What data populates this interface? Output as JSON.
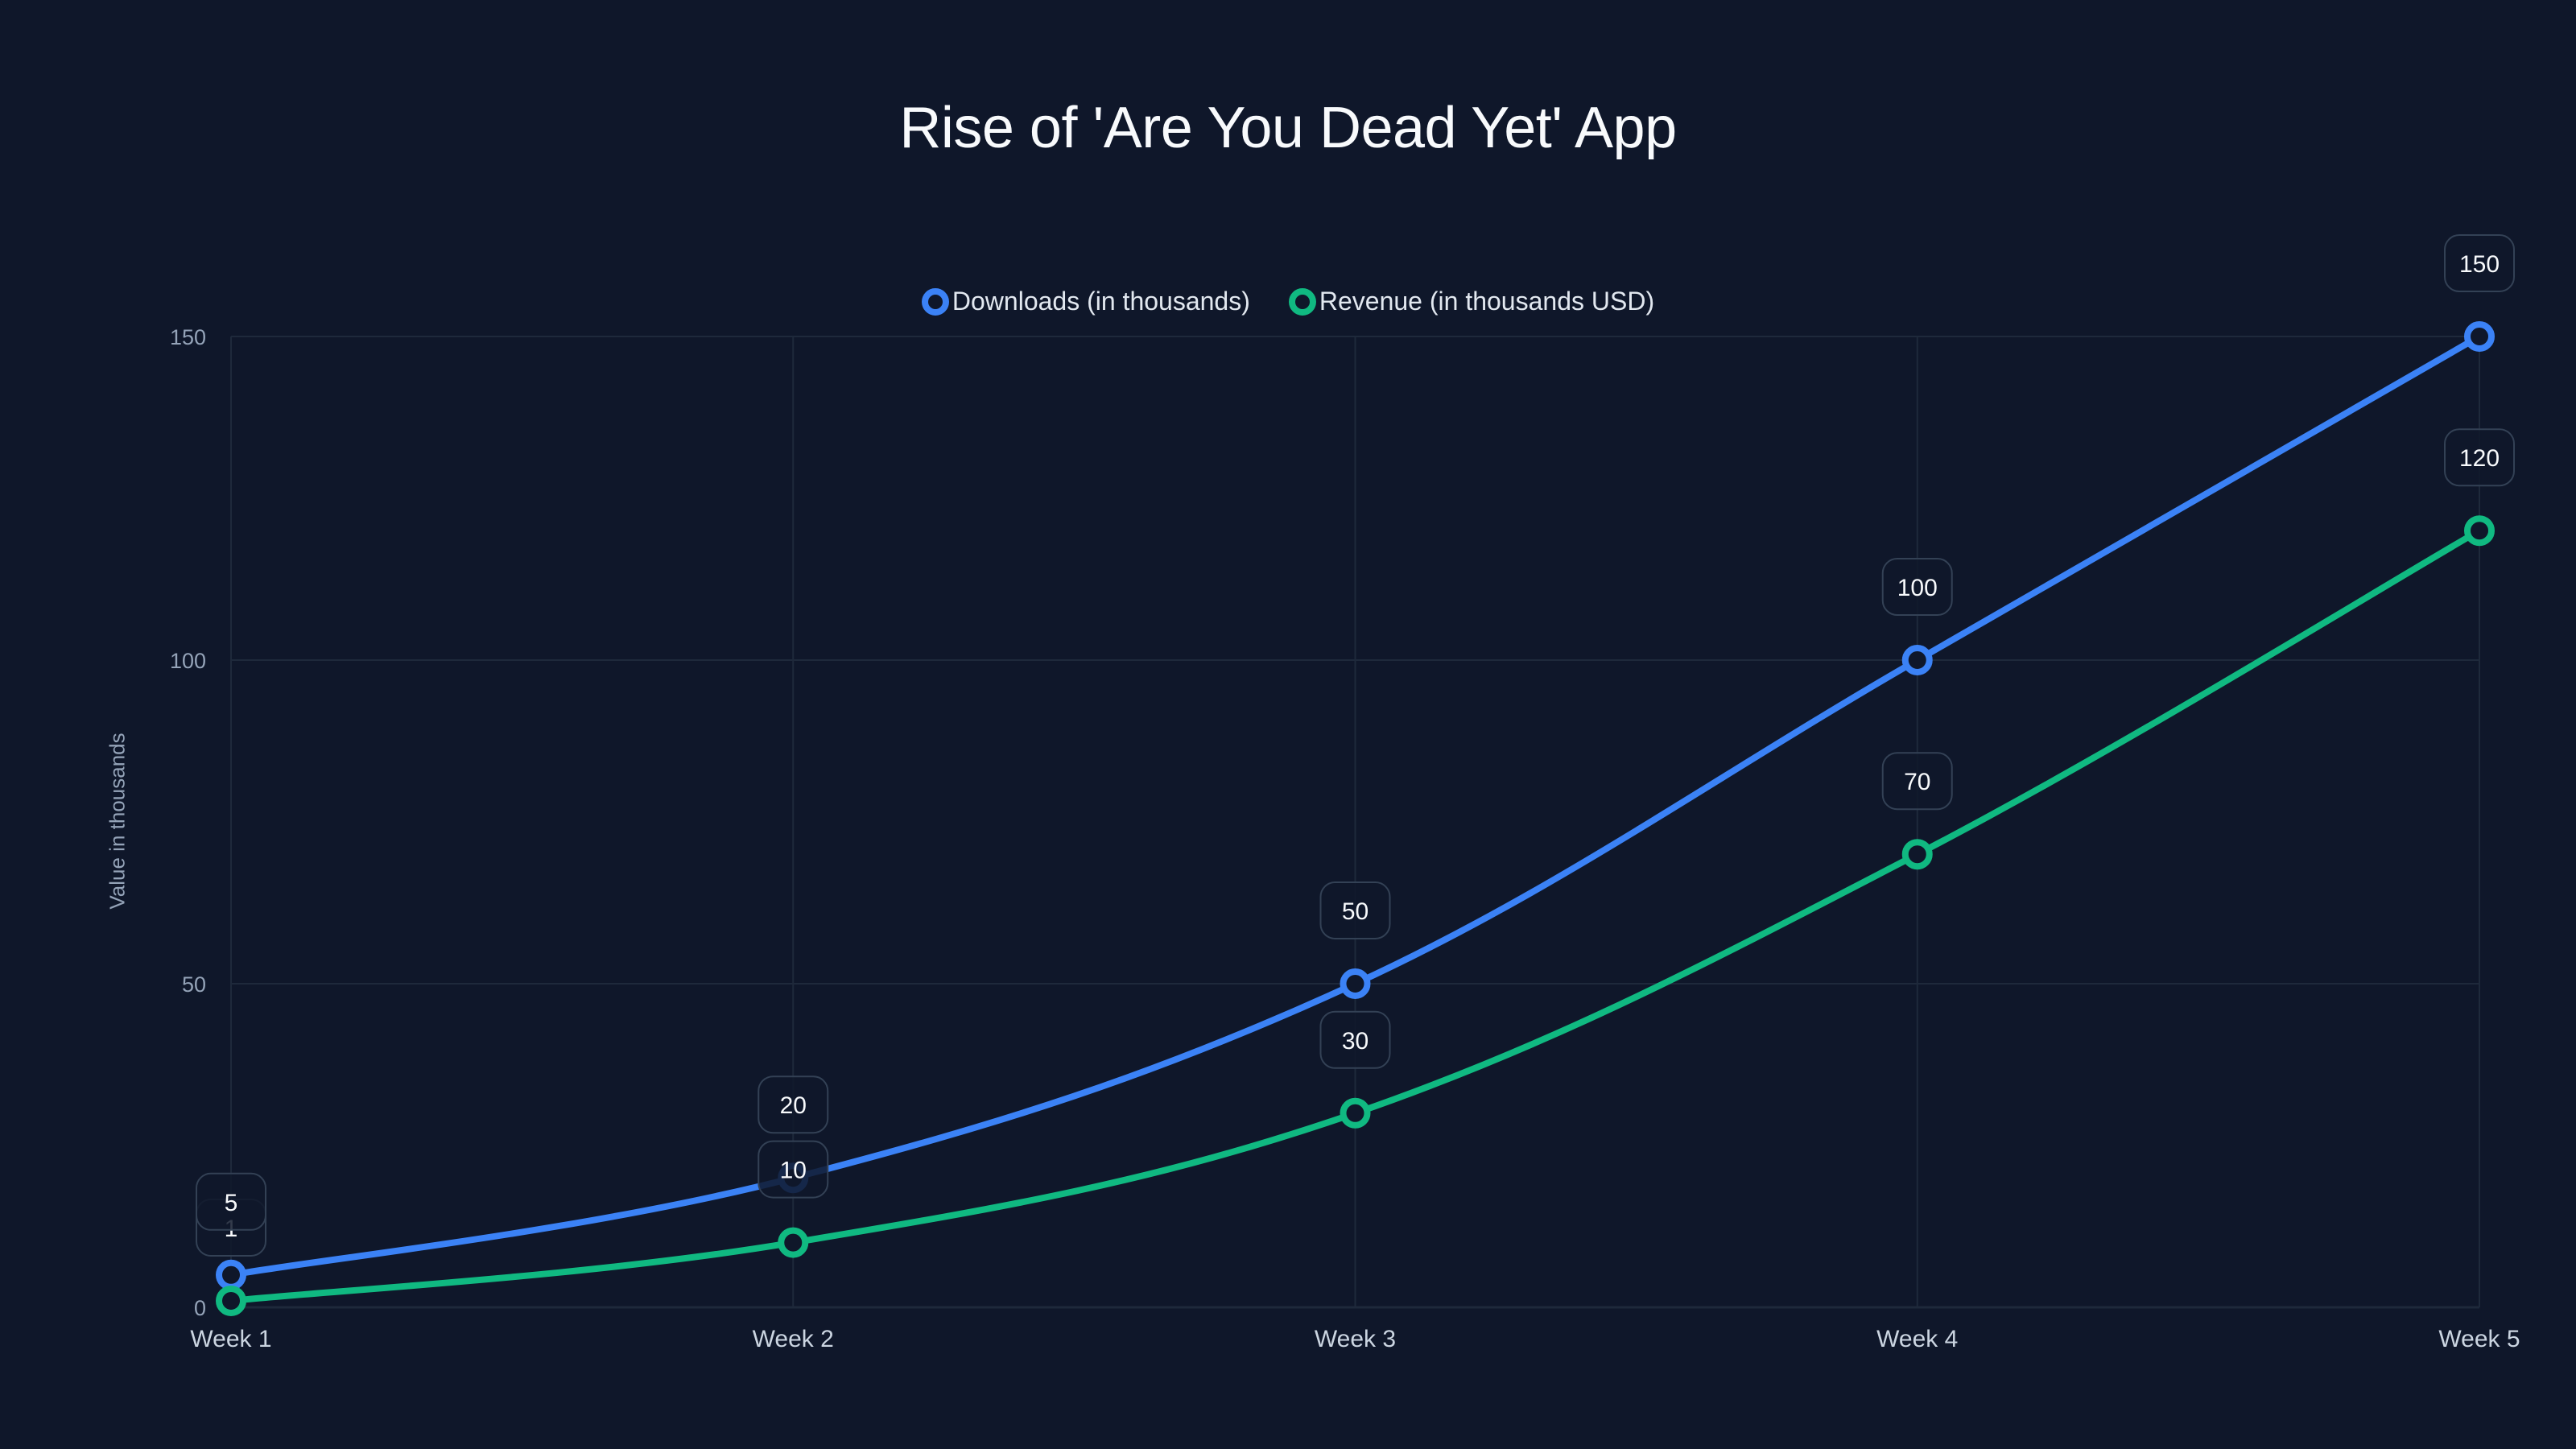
{
  "title": "Rise of 'Are You Dead Yet' App",
  "legend": {
    "items": [
      {
        "label": "Downloads (in thousands)",
        "color": "#3b82f6"
      },
      {
        "label": "Revenue (in thousands USD)",
        "color": "#10b981"
      }
    ]
  },
  "axes": {
    "y_title": "Value in thousands",
    "y_ticks": [
      "0",
      "50",
      "100",
      "150"
    ],
    "x_ticks": [
      "Week 1",
      "Week 2",
      "Week 3",
      "Week 4",
      "Week 5"
    ]
  },
  "colors": {
    "background": "#0f172a",
    "grid": "#1e293b",
    "downloads": "#3b82f6",
    "revenue": "#10b981",
    "label_border": "#334155"
  },
  "chart_data": {
    "type": "line",
    "title": "Rise of 'Are You Dead Yet' App",
    "xlabel": "",
    "ylabel": "Value in thousands",
    "categories": [
      "Week 1",
      "Week 2",
      "Week 3",
      "Week 4",
      "Week 5"
    ],
    "series": [
      {
        "name": "Downloads (in thousands)",
        "values": [
          5,
          20,
          50,
          100,
          150
        ],
        "color": "#3b82f6"
      },
      {
        "name": "Revenue (in thousands USD)",
        "values": [
          1,
          10,
          30,
          70,
          120
        ],
        "color": "#10b981"
      }
    ],
    "ylim": [
      0,
      150
    ],
    "yticks": [
      0,
      50,
      100,
      150
    ],
    "grid": true,
    "legend_position": "top-center",
    "data_labels": true,
    "smooth": true
  }
}
